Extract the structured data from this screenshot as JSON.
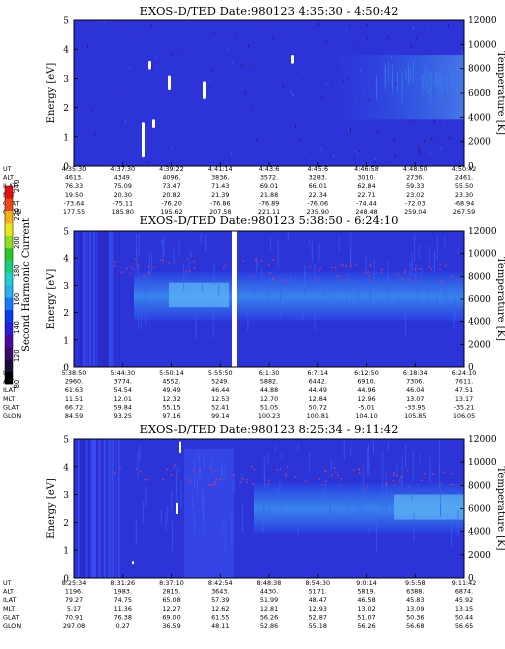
{
  "colorbar": {
    "label": "Second Harmonic Current",
    "ticks": [
      "80",
      "120",
      "140",
      "160",
      "180",
      "200",
      "220",
      "240"
    ],
    "colors": [
      "#000000",
      "#1a0c3a",
      "#3a0a6a",
      "#4b0aa5",
      "#2a1ed8",
      "#0a3cf0",
      "#1a78f8",
      "#2ab0f0",
      "#20d0d0",
      "#18d080",
      "#28c828",
      "#90e020",
      "#e8e818",
      "#f8b018",
      "#f04818",
      "#e01010"
    ]
  },
  "chart_data": [
    {
      "type": "heatmap",
      "title": "EXOS-D/TED   Date:980123   4:35:30 - 4:50:42",
      "ylabel": "Energy [eV]",
      "y2label": "Temperature [K]",
      "ylim": [
        0,
        5
      ],
      "y2lim": [
        0,
        12000
      ],
      "yticks": [
        "0",
        "1",
        "2",
        "3",
        "4",
        "5"
      ],
      "y2ticks": [
        "0",
        "2000",
        "4000",
        "6000",
        "8000",
        "10000",
        "12000"
      ],
      "table_labels": [
        "UT",
        "ALT",
        "ILAT",
        "MLT",
        "GLAT",
        "GLON"
      ],
      "table_columns": [
        [
          "4:35:30",
          "4613.",
          "76.33",
          "19.50",
          "-73.64",
          "177.55"
        ],
        [
          "4:37:30",
          "4349.",
          "75.09",
          "20.30",
          "-75.11",
          "185.80"
        ],
        [
          "4:39:22",
          "4096.",
          "73.47",
          "20.82",
          "-76.20",
          "195.62"
        ],
        [
          "4:41:14",
          "3836.",
          "71.43",
          "21.39",
          "-76.86",
          "207.58"
        ],
        [
          "4:43:6",
          "3572.",
          "69.01",
          "21.88",
          "-76.89",
          "221.11"
        ],
        [
          "4:45:6",
          "3283.",
          "66.01",
          "22.34",
          "-76.06",
          "235.90"
        ],
        [
          "4:46:58",
          "3010.",
          "62.84",
          "22.71",
          "-74.44",
          "248.48"
        ],
        [
          "4:48:50",
          "2736.",
          "59.33",
          "23.02",
          "-72.03",
          "259.04"
        ],
        [
          "4:50:42",
          "2461.",
          "55.50",
          "23.30",
          "-68.94",
          "267.59"
        ]
      ]
    },
    {
      "type": "heatmap",
      "title": "EXOS-D/TED   Date:980123   5:38:50 - 6:24:10",
      "ylabel": "Energy [eV]",
      "y2label": "Temperature [K]",
      "ylim": [
        0,
        5
      ],
      "y2lim": [
        0,
        12000
      ],
      "yticks": [
        "0",
        "1",
        "2",
        "3",
        "4",
        "5"
      ],
      "y2ticks": [
        "0",
        "2000",
        "4000",
        "6000",
        "8000",
        "10000",
        "12000"
      ],
      "table_labels": [
        "UT",
        "ALT",
        "ILAT",
        "MLT",
        "GLAT",
        "GLON"
      ],
      "table_columns": [
        [
          "5:38:50",
          "2960.",
          "61.63",
          "11.51",
          "66.72",
          "84.59"
        ],
        [
          "5:44:30",
          "3774.",
          "54.54",
          "12.01",
          "59.84",
          "93.25"
        ],
        [
          "5:50:14",
          "4552.",
          "49.49",
          "12.32",
          "55.15",
          "97.16"
        ],
        [
          "5:55:50",
          "5249.",
          "46.44",
          "12.53",
          "52.41",
          "99.14"
        ],
        [
          "6:1:30",
          "5882.",
          "44.88",
          "12.70",
          "51.05",
          "100.23"
        ],
        [
          "6:7:14",
          "6442.",
          "44.49",
          "12.84",
          "50.72",
          "100.81"
        ],
        [
          "6:12:50",
          "6910.",
          "44.96",
          "12.96",
          "-5.01",
          "104.10"
        ],
        [
          "6:18:34",
          "7306.",
          "46.04",
          "13.07",
          "-33.95",
          "105.85"
        ],
        [
          "6:24:10",
          "7611.",
          "47.51",
          "13.17",
          "-35.21",
          "106.05"
        ]
      ]
    },
    {
      "type": "heatmap",
      "title": "EXOS-D/TED   Date:980123   8:25:34 - 9:11:42",
      "ylabel": "Energy [eV]",
      "y2label": "Temperature [K]",
      "ylim": [
        0,
        5
      ],
      "y2lim": [
        0,
        12000
      ],
      "yticks": [
        "0",
        "1",
        "2",
        "3",
        "4",
        "5"
      ],
      "y2ticks": [
        "0",
        "2000",
        "4000",
        "6000",
        "8000",
        "10000",
        "12000"
      ],
      "table_labels": [
        "UT",
        "ALT",
        "ILAT",
        "MLT",
        "GLAT",
        "GLON"
      ],
      "table_columns": [
        [
          "8:25:34",
          "1196.",
          "79.27",
          "5.17",
          "70.91",
          "297.08"
        ],
        [
          "8:31:26",
          "1983.",
          "74.75",
          "11.36",
          "76.38",
          "0.27"
        ],
        [
          "8:37:10",
          "2815.",
          "65.08",
          "12.27",
          "69.00",
          "36.59"
        ],
        [
          "8:42:54",
          "3643.",
          "57.39",
          "12.62",
          "61.55",
          "48.11"
        ],
        [
          "8:48:38",
          "4430.",
          "51.99",
          "12.81",
          "56.26",
          "52.86"
        ],
        [
          "8:54:30",
          "5171.",
          "48.47",
          "12.93",
          "52.87",
          "55.18"
        ],
        [
          "9:0:14",
          "5819.",
          "46.58",
          "13.02",
          "51.07",
          "56.26"
        ],
        [
          "9:5:58",
          "6388.",
          "45.83",
          "13.09",
          "50.36",
          "56.68"
        ],
        [
          "9:11:42",
          "6874.",
          "45.92",
          "13.15",
          "50.44",
          "56.65"
        ]
      ]
    }
  ]
}
